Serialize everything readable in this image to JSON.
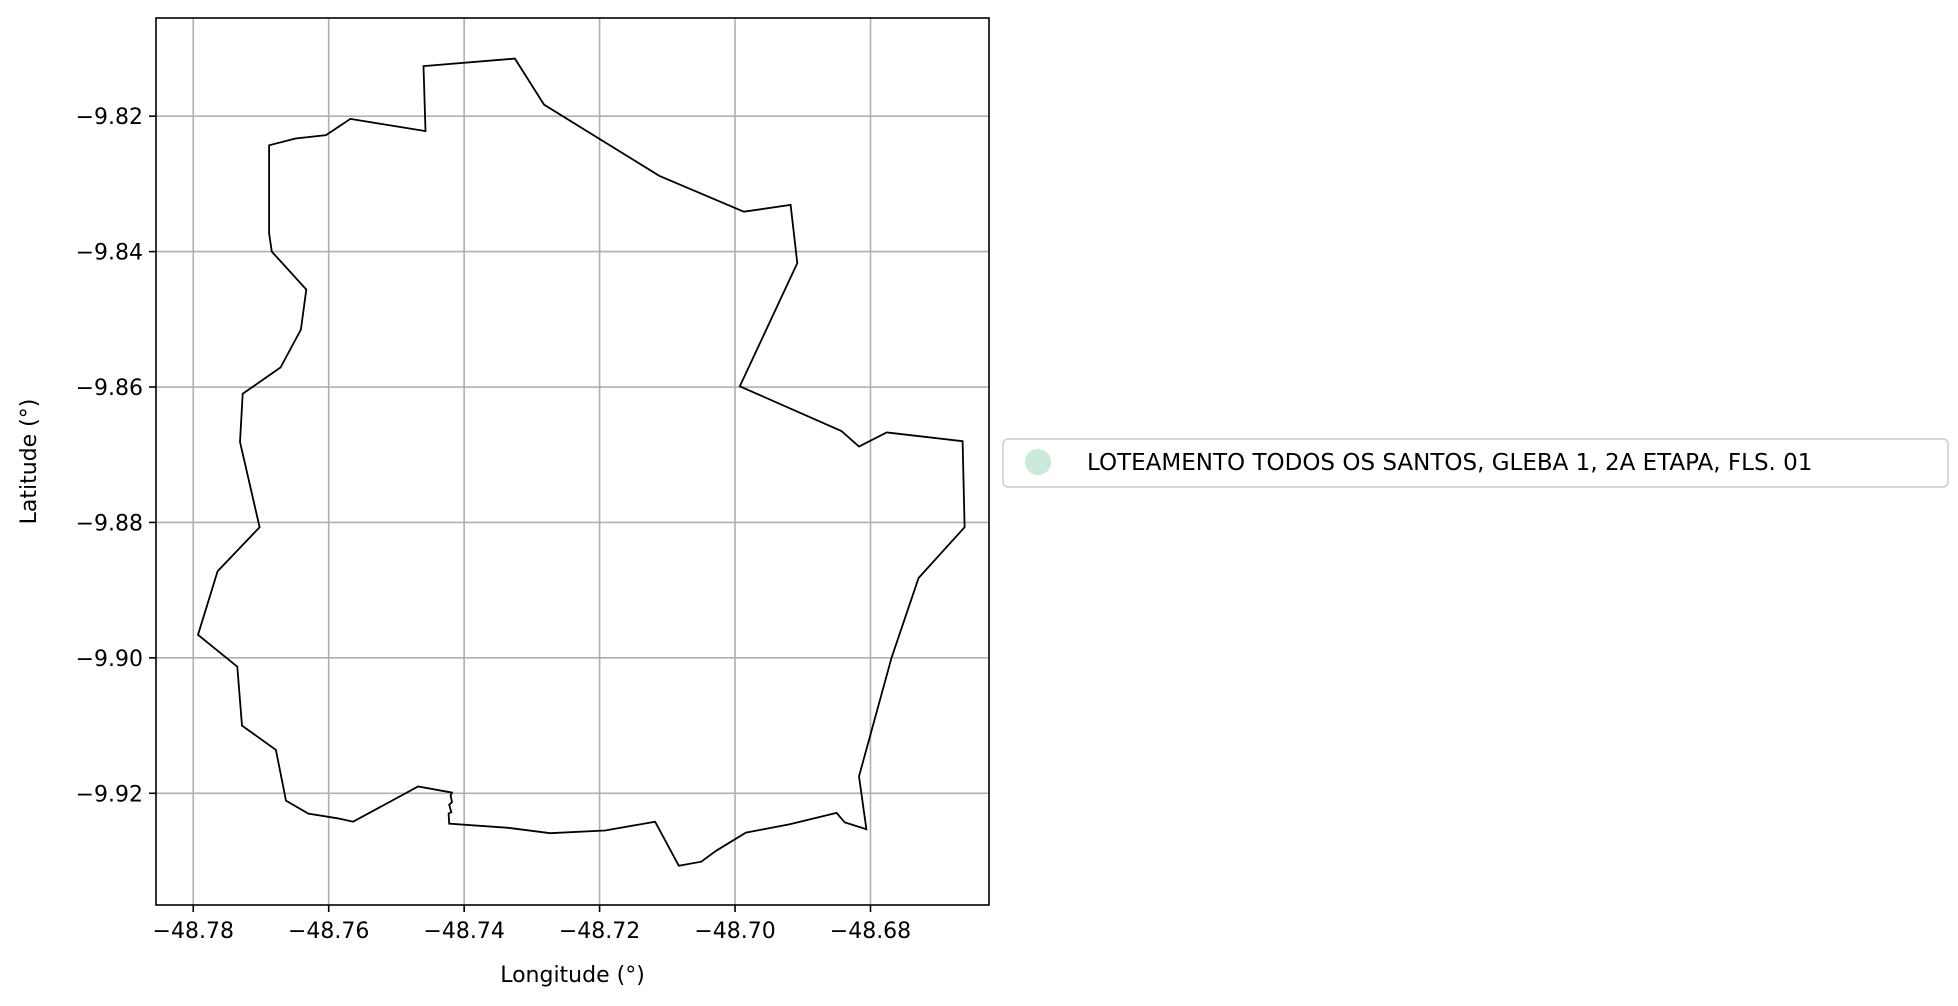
{
  "chart_data": {
    "type": "map",
    "xlabel": "Longitude (°)",
    "ylabel": "Latitude (°)",
    "xlim": [
      -48.7855,
      -48.6625
    ],
    "ylim": [
      -9.9365,
      -9.8055
    ],
    "grid": true,
    "xticks": [
      -48.78,
      -48.76,
      -48.74,
      -48.72,
      -48.7,
      -48.68
    ],
    "yticks": [
      -9.82,
      -9.84,
      -9.86,
      -9.88,
      -9.9,
      -9.92
    ],
    "xtick_labels": [
      "−48.78",
      "−48.76",
      "−48.74",
      "−48.72",
      "−48.70",
      "−48.68"
    ],
    "ytick_labels": [
      "−9.82",
      "−9.84",
      "−9.86",
      "−9.88",
      "−9.90",
      "−9.92"
    ],
    "legend": {
      "placement": "center-right-outside",
      "entries": [
        {
          "label": "LOTEAMENTO TODOS OS SANTOS, GLEBA 1, 2A ETAPA, FLS. 01",
          "color": "#c9ead8",
          "marker": "circle"
        }
      ]
    },
    "series": [
      {
        "name": "LOTEAMENTO TODOS OS SANTOS, GLEBA 1, 2A ETAPA, FLS. 01",
        "geometry": "polygon",
        "stroke": "#000000",
        "points": [
          [
            -48.746,
            -9.8126
          ],
          [
            -48.7325,
            -9.8115
          ],
          [
            -48.7282,
            -9.8183
          ],
          [
            -48.7112,
            -9.8288
          ],
          [
            -48.6987,
            -9.8341
          ],
          [
            -48.6918,
            -9.8331
          ],
          [
            -48.6908,
            -9.8417
          ],
          [
            -48.6993,
            -9.8599
          ],
          [
            -48.6843,
            -9.8665
          ],
          [
            -48.6817,
            -9.8688
          ],
          [
            -48.6776,
            -9.8667
          ],
          [
            -48.6664,
            -9.868
          ],
          [
            -48.6661,
            -9.8807
          ],
          [
            -48.6729,
            -9.8882
          ],
          [
            -48.6769,
            -9.9
          ],
          [
            -48.6817,
            -9.9175
          ],
          [
            -48.6806,
            -9.9253
          ],
          [
            -48.6838,
            -9.9243
          ],
          [
            -48.685,
            -9.9229
          ],
          [
            -48.692,
            -9.9246
          ],
          [
            -48.6984,
            -9.9258
          ],
          [
            -48.7028,
            -9.9285
          ],
          [
            -48.705,
            -9.9301
          ],
          [
            -48.7083,
            -9.9307
          ],
          [
            -48.7118,
            -9.9242
          ],
          [
            -48.7192,
            -9.9255
          ],
          [
            -48.7273,
            -9.9259
          ],
          [
            -48.7335,
            -9.9251
          ],
          [
            -48.7422,
            -9.9245
          ],
          [
            -48.7423,
            -9.923
          ],
          [
            -48.7419,
            -9.9228
          ],
          [
            -48.7422,
            -9.9217
          ],
          [
            -48.7418,
            -9.9213
          ],
          [
            -48.742,
            -9.9203
          ],
          [
            -48.7418,
            -9.9199
          ],
          [
            -48.7468,
            -9.919
          ],
          [
            -48.7564,
            -9.9242
          ],
          [
            -48.7587,
            -9.9237
          ],
          [
            -48.763,
            -9.923
          ],
          [
            -48.7663,
            -9.9211
          ],
          [
            -48.7678,
            -9.9136
          ],
          [
            -48.7728,
            -9.91
          ],
          [
            -48.7735,
            -9.9013
          ],
          [
            -48.7793,
            -9.8966
          ],
          [
            -48.7764,
            -9.8872
          ],
          [
            -48.7702,
            -9.8807
          ],
          [
            -48.7731,
            -9.8681
          ],
          [
            -48.7727,
            -9.861
          ],
          [
            -48.7671,
            -9.8571
          ],
          [
            -48.7641,
            -9.8515
          ],
          [
            -48.7633,
            -9.8456
          ],
          [
            -48.7684,
            -9.84
          ],
          [
            -48.7688,
            -9.8373
          ],
          [
            -48.7688,
            -9.8243
          ],
          [
            -48.7649,
            -9.8233
          ],
          [
            -48.7604,
            -9.8228
          ],
          [
            -48.7568,
            -9.8204
          ],
          [
            -48.7457,
            -9.8222
          ]
        ]
      }
    ]
  }
}
